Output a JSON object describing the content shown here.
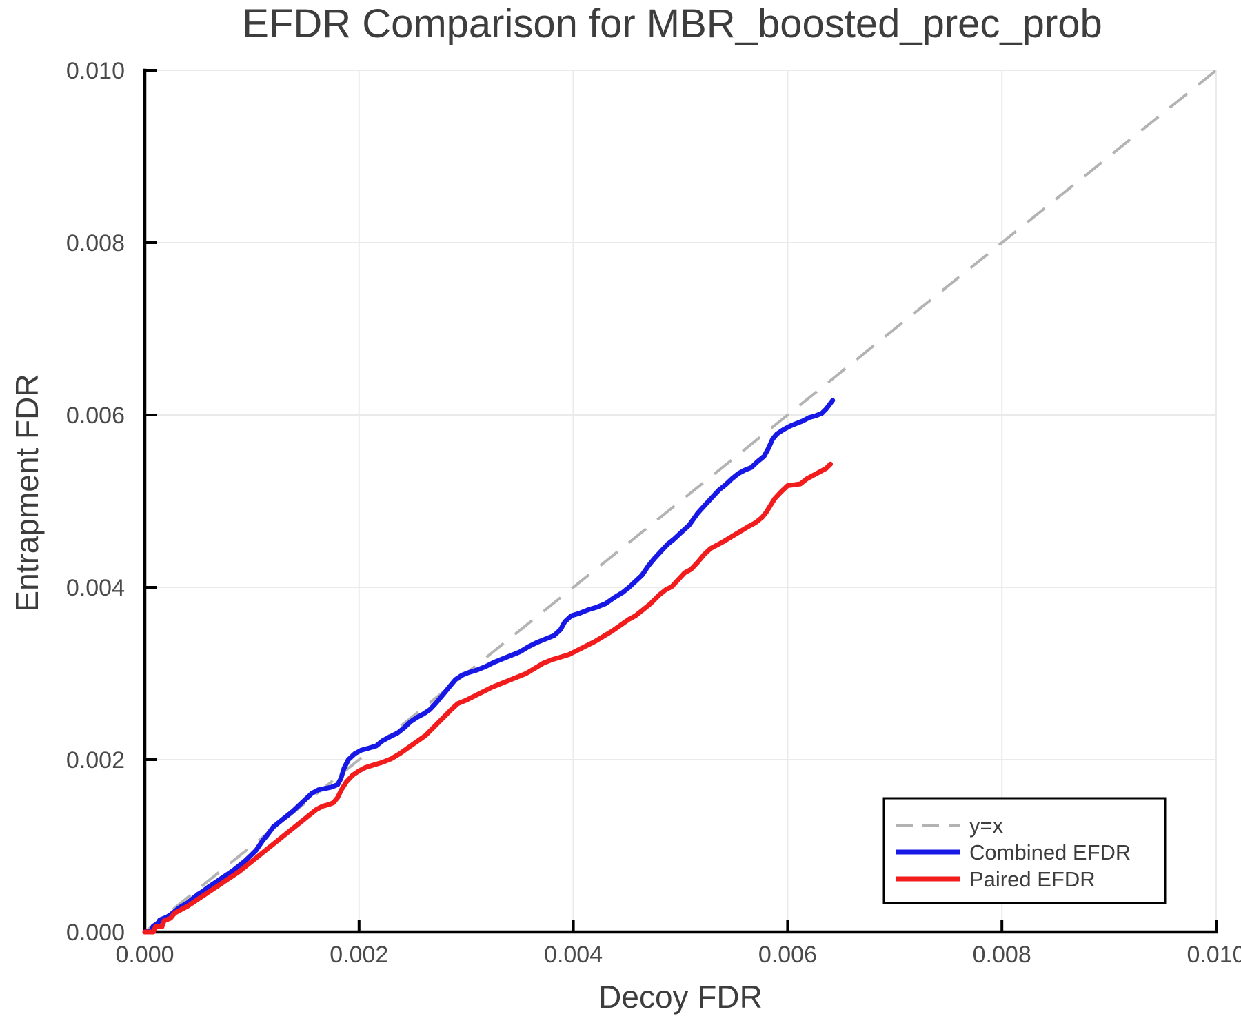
{
  "chart_data": {
    "type": "line",
    "title": "EFDR Comparison for MBR_boosted_prec_prob",
    "xlabel": "Decoy FDR",
    "ylabel": "Entrapment FDR",
    "xlim": [
      0.0,
      0.01
    ],
    "ylim": [
      0.0,
      0.01
    ],
    "grid": true,
    "legend_position": "bottom-right",
    "xticks": [
      0.0,
      0.002,
      0.004,
      0.006,
      0.008,
      0.01
    ],
    "yticks": [
      0.0,
      0.002,
      0.004,
      0.006,
      0.008,
      0.01
    ],
    "xtick_labels": [
      "0.000",
      "0.002",
      "0.004",
      "0.006",
      "0.008",
      "0.010"
    ],
    "ytick_labels": [
      "0.000",
      "0.002",
      "0.004",
      "0.006",
      "0.008",
      "0.010"
    ],
    "reference_line": {
      "label": "y=x",
      "from": [
        0.0,
        0.0
      ],
      "to": [
        0.01,
        0.01
      ],
      "color": "#b3b3b3",
      "style": "dashed"
    },
    "series": [
      {
        "name": "Combined EFDR",
        "color": "#1717e6",
        "x": [
          0.0,
          6e-05,
          8e-05,
          0.00012,
          0.00014,
          0.0002,
          0.00024,
          0.00028,
          0.00032,
          0.00036,
          0.0004,
          0.00044,
          0.0005,
          0.00054,
          0.00058,
          0.00064,
          0.0007,
          0.00076,
          0.00082,
          0.00088,
          0.00094,
          0.001,
          0.00104,
          0.0011,
          0.00114,
          0.0012,
          0.00126,
          0.00132,
          0.00138,
          0.00144,
          0.0015,
          0.00156,
          0.00162,
          0.00166,
          0.0017,
          0.00174,
          0.0018,
          0.00183,
          0.00186,
          0.0019,
          0.00196,
          0.00202,
          0.00208,
          0.00216,
          0.00222,
          0.00228,
          0.00236,
          0.00242,
          0.00248,
          0.00254,
          0.0026,
          0.00266,
          0.00272,
          0.00278,
          0.00284,
          0.0029,
          0.00296,
          0.00302,
          0.0031,
          0.00318,
          0.00326,
          0.00334,
          0.00342,
          0.0035,
          0.00358,
          0.00366,
          0.00374,
          0.00382,
          0.00388,
          0.00392,
          0.00398,
          0.00406,
          0.00414,
          0.00422,
          0.0043,
          0.00438,
          0.00446,
          0.00452,
          0.00458,
          0.00464,
          0.0047,
          0.00476,
          0.00482,
          0.00488,
          0.00494,
          0.005,
          0.00508,
          0.00516,
          0.00524,
          0.0053,
          0.00536,
          0.00542,
          0.00548,
          0.00554,
          0.0056,
          0.00566,
          0.00572,
          0.00578,
          0.00582,
          0.00586,
          0.0059,
          0.00596,
          0.00602,
          0.00608,
          0.00614,
          0.0062,
          0.00626,
          0.00632,
          0.00636,
          0.00642
        ],
        "y": [
          0.0,
          2e-05,
          7e-05,
          0.0001,
          0.00014,
          0.00017,
          0.0002,
          0.00024,
          0.00028,
          0.00031,
          0.00034,
          0.00038,
          0.00044,
          0.00047,
          0.00051,
          0.00056,
          0.00061,
          0.00066,
          0.00071,
          0.00077,
          0.00083,
          0.0009,
          0.00095,
          0.00106,
          0.00112,
          0.00122,
          0.00128,
          0.00134,
          0.0014,
          0.00147,
          0.00154,
          0.00161,
          0.00165,
          0.00166,
          0.00167,
          0.00168,
          0.00171,
          0.00178,
          0.0019,
          0.002,
          0.00207,
          0.00211,
          0.00213,
          0.00216,
          0.00222,
          0.00226,
          0.00231,
          0.00237,
          0.00244,
          0.00249,
          0.00253,
          0.00258,
          0.00266,
          0.00275,
          0.00284,
          0.00293,
          0.00298,
          0.00301,
          0.00304,
          0.00308,
          0.00313,
          0.00317,
          0.00321,
          0.00325,
          0.00331,
          0.00336,
          0.0034,
          0.00344,
          0.00351,
          0.0036,
          0.00367,
          0.0037,
          0.00374,
          0.00377,
          0.00381,
          0.00388,
          0.00394,
          0.004,
          0.00407,
          0.00414,
          0.00425,
          0.00434,
          0.00442,
          0.0045,
          0.00456,
          0.00463,
          0.00472,
          0.00486,
          0.00497,
          0.00505,
          0.00513,
          0.00519,
          0.00526,
          0.00532,
          0.00536,
          0.00539,
          0.00546,
          0.00552,
          0.00561,
          0.00572,
          0.00578,
          0.00583,
          0.00587,
          0.0059,
          0.00593,
          0.00597,
          0.00599,
          0.00602,
          0.00607,
          0.00617
        ]
      },
      {
        "name": "Paired EFDR",
        "color": "#f21c1c",
        "x": [
          0.0,
          8e-05,
          0.0001,
          0.00016,
          0.00018,
          0.00024,
          0.00028,
          0.00034,
          0.0004,
          0.00046,
          0.00052,
          0.00058,
          0.00064,
          0.0007,
          0.00076,
          0.00082,
          0.00088,
          0.00094,
          0.001,
          0.00106,
          0.00112,
          0.00118,
          0.00124,
          0.0013,
          0.00136,
          0.00142,
          0.00148,
          0.00154,
          0.0016,
          0.00166,
          0.00172,
          0.00176,
          0.0018,
          0.00184,
          0.00188,
          0.00194,
          0.002,
          0.00206,
          0.00214,
          0.00222,
          0.0023,
          0.00238,
          0.00246,
          0.00254,
          0.00262,
          0.0027,
          0.00278,
          0.00286,
          0.00292,
          0.003,
          0.00308,
          0.00316,
          0.00324,
          0.00332,
          0.0034,
          0.00348,
          0.00356,
          0.00364,
          0.00372,
          0.0038,
          0.00388,
          0.00396,
          0.00404,
          0.00412,
          0.0042,
          0.00428,
          0.00436,
          0.00444,
          0.00452,
          0.00458,
          0.00464,
          0.00472,
          0.0048,
          0.00486,
          0.00492,
          0.00498,
          0.00504,
          0.0051,
          0.00516,
          0.00522,
          0.00528,
          0.00534,
          0.0054,
          0.00548,
          0.00556,
          0.00564,
          0.0057,
          0.00576,
          0.0058,
          0.00584,
          0.00588,
          0.00594,
          0.006,
          0.00606,
          0.00612,
          0.00618,
          0.00624,
          0.0063,
          0.00636,
          0.0064
        ],
        "y": [
          0.0,
          0.0,
          6e-05,
          6e-05,
          0.00013,
          0.00016,
          0.00022,
          0.00026,
          0.0003,
          0.00035,
          0.0004,
          0.00045,
          0.0005,
          0.00055,
          0.0006,
          0.00065,
          0.0007,
          0.00076,
          0.00082,
          0.00088,
          0.00094,
          0.001,
          0.00106,
          0.00112,
          0.00118,
          0.00124,
          0.0013,
          0.00136,
          0.00142,
          0.00146,
          0.00148,
          0.0015,
          0.00156,
          0.00166,
          0.00174,
          0.00182,
          0.00187,
          0.00191,
          0.00194,
          0.00197,
          0.00201,
          0.00207,
          0.00214,
          0.00221,
          0.00228,
          0.00238,
          0.00248,
          0.00258,
          0.00265,
          0.00269,
          0.00274,
          0.00279,
          0.00284,
          0.00288,
          0.00292,
          0.00296,
          0.003,
          0.00306,
          0.00312,
          0.00316,
          0.00319,
          0.00322,
          0.00327,
          0.00332,
          0.00337,
          0.00343,
          0.00349,
          0.00356,
          0.00363,
          0.00367,
          0.00373,
          0.00381,
          0.00391,
          0.00397,
          0.00401,
          0.00409,
          0.00417,
          0.00421,
          0.00429,
          0.00438,
          0.00445,
          0.00449,
          0.00453,
          0.00459,
          0.00465,
          0.00471,
          0.00475,
          0.00481,
          0.00487,
          0.00495,
          0.00503,
          0.00511,
          0.00518,
          0.00519,
          0.0052,
          0.00526,
          0.0053,
          0.00534,
          0.00538,
          0.00543
        ]
      }
    ]
  },
  "colors": {
    "background": "#ffffff",
    "grid": "#eaeaea",
    "spine": "#000000",
    "title_text": "#3d3d3d",
    "tick_text": "#4a4a4a",
    "legend_border": "#000000",
    "legend_background": "#ffffff"
  }
}
